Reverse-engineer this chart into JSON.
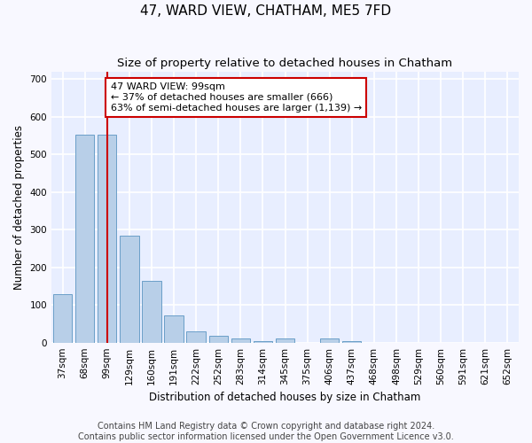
{
  "title": "47, WARD VIEW, CHATHAM, ME5 7FD",
  "subtitle": "Size of property relative to detached houses in Chatham",
  "xlabel": "Distribution of detached houses by size in Chatham",
  "ylabel": "Number of detached properties",
  "categories": [
    "37sqm",
    "68sqm",
    "99sqm",
    "129sqm",
    "160sqm",
    "191sqm",
    "222sqm",
    "252sqm",
    "283sqm",
    "314sqm",
    "345sqm",
    "375sqm",
    "406sqm",
    "437sqm",
    "468sqm",
    "498sqm",
    "529sqm",
    "560sqm",
    "591sqm",
    "621sqm",
    "652sqm"
  ],
  "values": [
    128,
    553,
    553,
    283,
    163,
    72,
    29,
    18,
    10,
    5,
    10,
    0,
    10,
    5,
    0,
    0,
    0,
    0,
    0,
    0,
    0
  ],
  "bar_color": "#b8cfe8",
  "bar_edge_color": "#6a9fc8",
  "vline_x": 2,
  "vline_color": "#cc0000",
  "annotation_text": "47 WARD VIEW: 99sqm\n← 37% of detached houses are smaller (666)\n63% of semi-detached houses are larger (1,139) →",
  "annotation_box_facecolor": "#ffffff",
  "annotation_box_edgecolor": "#cc0000",
  "ylim": [
    0,
    720
  ],
  "yticks": [
    0,
    100,
    200,
    300,
    400,
    500,
    600,
    700
  ],
  "footer_line1": "Contains HM Land Registry data © Crown copyright and database right 2024.",
  "footer_line2": "Contains public sector information licensed under the Open Government Licence v3.0.",
  "background_color": "#e8eeff",
  "grid_color": "#ffffff",
  "fig_facecolor": "#f8f8ff",
  "title_fontsize": 11,
  "subtitle_fontsize": 9.5,
  "axis_label_fontsize": 8.5,
  "tick_fontsize": 7.5,
  "annotation_fontsize": 8,
  "footer_fontsize": 7
}
